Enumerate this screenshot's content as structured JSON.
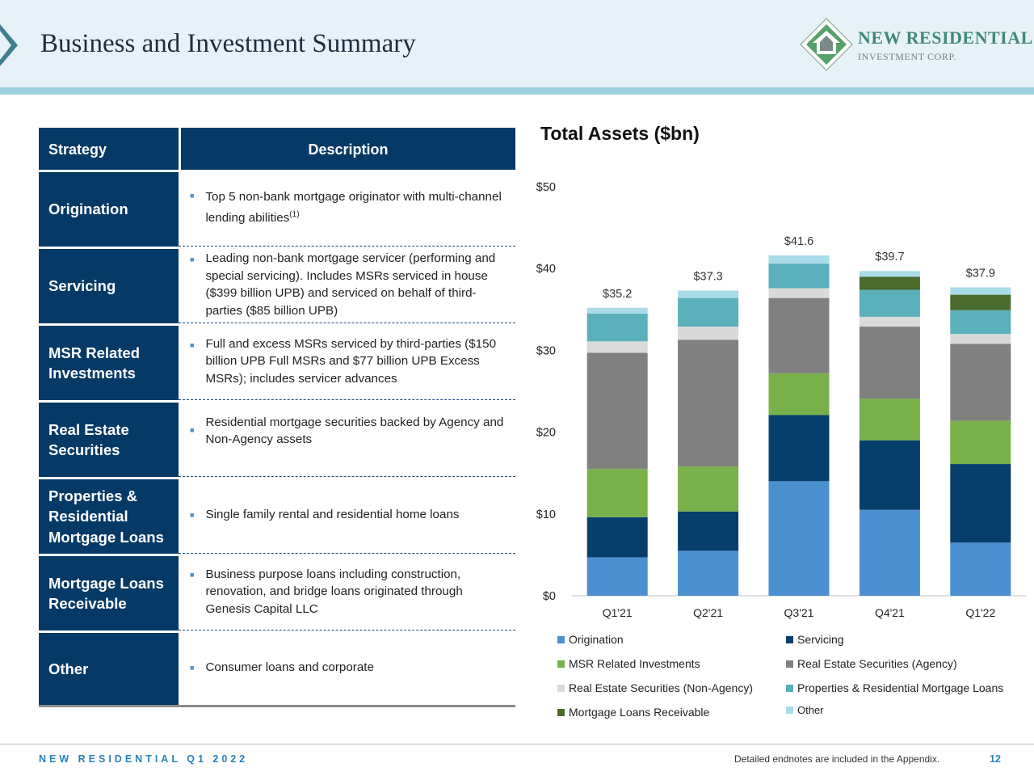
{
  "header": {
    "title": "Business and Investment Summary",
    "logo_name": "NEW RESIDENTIAL",
    "logo_sub": "INVESTMENT CORP."
  },
  "table": {
    "headers": {
      "strategy": "Strategy",
      "description": "Description"
    },
    "rows": [
      {
        "strategy": "Origination",
        "description": "Top 5 non-bank mortgage originator with multi-channel lending abilities",
        "footnote": "(1)"
      },
      {
        "strategy": "Servicing",
        "description": "Leading non-bank mortgage servicer (performing and special servicing). Includes MSRs serviced in house ($399 billion UPB) and serviced on behalf of third-parties ($85 billion UPB)"
      },
      {
        "strategy": "MSR Related Investments",
        "description": "Full and excess MSRs serviced by third-parties ($150 billion UPB Full MSRs and $77 billion UPB Excess MSRs); includes servicer advances"
      },
      {
        "strategy": "Real Estate Securities",
        "description": "Residential mortgage securities backed by Agency and Non-Agency assets"
      },
      {
        "strategy": "Properties & Residential Mortgage Loans",
        "description": "Single family rental and residential home loans"
      },
      {
        "strategy": "Mortgage Loans Receivable",
        "description": "Business purpose loans including construction, renovation, and bridge loans originated through Genesis Capital LLC"
      },
      {
        "strategy": "Other",
        "description": "Consumer loans and corporate"
      }
    ]
  },
  "chart_data": {
    "type": "bar",
    "stacked": true,
    "title": "Total Assets ($bn)",
    "categories": [
      "Q1'21",
      "Q2'21",
      "Q3'21",
      "Q4'21",
      "Q1'22"
    ],
    "totals": [
      "$35.2",
      "$37.3",
      "$41.6",
      "$39.7",
      "$37.9"
    ],
    "ylim": [
      0,
      50
    ],
    "yticks": [
      "$0",
      "$10",
      "$20",
      "$30",
      "$40",
      "$50"
    ],
    "ytick_values": [
      0,
      10,
      20,
      30,
      40,
      50
    ],
    "grid": false,
    "legend_position": "bottom",
    "series": [
      {
        "name": "Origination",
        "color": "#4a8fd0",
        "values": [
          4.7,
          5.5,
          14.0,
          10.5,
          6.5
        ]
      },
      {
        "name": "Servicing",
        "color": "#063f6b",
        "values": [
          4.9,
          4.8,
          8.1,
          8.5,
          9.6
        ]
      },
      {
        "name": "MSR Related Investments",
        "color": "#78b04a",
        "values": [
          5.9,
          5.5,
          5.1,
          5.1,
          5.3
        ]
      },
      {
        "name": "Real Estate Securities (Agency)",
        "color": "#808080",
        "values": [
          14.2,
          15.5,
          9.2,
          8.8,
          9.4
        ]
      },
      {
        "name": "Real Estate Securities (Non-Agency)",
        "color": "#d9d9d9",
        "values": [
          1.4,
          1.6,
          1.2,
          1.2,
          1.2
        ]
      },
      {
        "name": "Properties & Residential Mortgage Loans",
        "color": "#5ab0bb",
        "values": [
          3.4,
          3.5,
          3.0,
          3.3,
          2.9
        ]
      },
      {
        "name": "Mortgage Loans Receivable",
        "color": "#4a6b2c",
        "values": [
          0,
          0,
          0,
          1.6,
          1.9
        ]
      },
      {
        "name": "Other",
        "color": "#a9dbe8",
        "values": [
          0.7,
          0.9,
          1.0,
          0.7,
          0.9
        ]
      }
    ]
  },
  "footer": {
    "left": "NEW RESIDENTIAL Q1 2022",
    "note": "Detailed endnotes are included in the Appendix.",
    "page": "12"
  }
}
